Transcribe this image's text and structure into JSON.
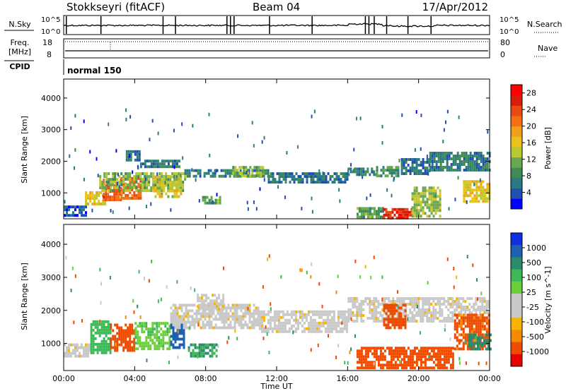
{
  "header": {
    "station": "Stokkseyri (fitACF)",
    "beam": "Beam 04",
    "date": "17/Apr/2012"
  },
  "noise_panel": {
    "left_label": "N.Sky",
    "right_label": "N.Search",
    "tick_top": "10^5",
    "tick_bottom": "10^0"
  },
  "freq_panel": {
    "left_label_1": "Freq.",
    "left_label_2": "[MHz]",
    "right_label": "Nave",
    "left_ticks": [
      "18",
      "8"
    ],
    "right_ticks": [
      "80",
      "0"
    ]
  },
  "cpid_panel": {
    "label": "CPID",
    "program": "normal 150"
  },
  "colors": {
    "power_scale": [
      "#0000ff",
      "#1f4fb0",
      "#2a7a86",
      "#3f8a55",
      "#6aa84f",
      "#b8c832",
      "#e9c21b",
      "#f0a01a",
      "#f26f13",
      "#e84a10",
      "#d81e0a",
      "#ff0000"
    ],
    "velocity_scale": [
      "#e60000",
      "#ef4b00",
      "#f58a00",
      "#f7b400",
      "#c9c9c9",
      "#c9c9c9",
      "#6ad03a",
      "#3cb856",
      "#2a8a6a",
      "#1d5fb0",
      "#1030e0"
    ]
  },
  "chart_data": [
    {
      "type": "heatmap",
      "panel": "power",
      "ylabel": "Slant Range [km]",
      "x_ticks": [
        "00:00",
        "04:00",
        "08:00",
        "12:00",
        "16:00",
        "20:00",
        "00:00"
      ],
      "y_ticks": [
        1000,
        2000,
        3000,
        4000
      ],
      "ylim": [
        180,
        4600
      ],
      "colorbar": {
        "label": "Power [dB]",
        "ticks": [
          4,
          8,
          12,
          16,
          20,
          24,
          28
        ],
        "range": [
          0,
          30
        ]
      },
      "regions": [
        {
          "t": [
            1.2,
            2.3
          ],
          "r": [
            650,
            1050
          ],
          "level": 16
        },
        {
          "t": [
            2.2,
            3.2
          ],
          "r": [
            800,
            1450
          ],
          "level": 23
        },
        {
          "t": [
            3.2,
            4.3
          ],
          "r": [
            850,
            1500
          ],
          "level": 22
        },
        {
          "t": [
            2.0,
            6.8
          ],
          "r": [
            1100,
            1650
          ],
          "level": 12
        },
        {
          "t": [
            5.0,
            6.6
          ],
          "r": [
            850,
            1550
          ],
          "level": 15
        },
        {
          "t": [
            4.3,
            6.5
          ],
          "r": [
            1800,
            2050
          ],
          "level": 7
        },
        {
          "t": [
            3.5,
            4.3
          ],
          "r": [
            2050,
            2350
          ],
          "level": 6
        },
        {
          "t": [
            6.8,
            11.5
          ],
          "r": [
            1500,
            1750
          ],
          "level": 7
        },
        {
          "t": [
            9.5,
            11.2
          ],
          "r": [
            1500,
            1850
          ],
          "level": 12
        },
        {
          "t": [
            11.5,
            16.0
          ],
          "r": [
            1350,
            1650
          ],
          "level": 6
        },
        {
          "t": [
            16.0,
            17.6
          ],
          "r": [
            1550,
            1800
          ],
          "level": 7
        },
        {
          "t": [
            17.6,
            18.8
          ],
          "r": [
            1500,
            1850
          ],
          "level": 9
        },
        {
          "t": [
            19.0,
            20.6
          ],
          "r": [
            1650,
            2100
          ],
          "level": 6
        },
        {
          "t": [
            20.6,
            24.0
          ],
          "r": [
            1700,
            2300
          ],
          "level": 7
        },
        {
          "t": [
            16.5,
            18.0
          ],
          "r": [
            250,
            550
          ],
          "level": 10
        },
        {
          "t": [
            18.0,
            19.6
          ],
          "r": [
            200,
            520
          ],
          "level": 26
        },
        {
          "t": [
            19.6,
            21.2
          ],
          "r": [
            300,
            1200
          ],
          "level": 13
        },
        {
          "t": [
            22.5,
            24.0
          ],
          "r": [
            700,
            1400
          ],
          "level": 16
        },
        {
          "t": [
            0.0,
            1.2
          ],
          "r": [
            300,
            600
          ],
          "level": 4
        },
        {
          "t": [
            7.8,
            8.8
          ],
          "r": [
            650,
            900
          ],
          "level": 10
        }
      ]
    },
    {
      "type": "heatmap",
      "panel": "velocity",
      "ylabel": "Slant Range [km]",
      "xlabel": "Time UT",
      "x_ticks": [
        "00:00",
        "04:00",
        "08:00",
        "12:00",
        "16:00",
        "20:00",
        "00:00"
      ],
      "y_ticks": [
        1000,
        2000,
        3000,
        4000
      ],
      "ylim": [
        180,
        4600
      ],
      "colorbar": {
        "label": "Velocity [m s^-1]",
        "ticks": [
          "1000",
          "500",
          "100",
          "25",
          "-25",
          "-100",
          "-500",
          "-1000"
        ]
      },
      "regions": [
        {
          "t": [
            0.0,
            1.5
          ],
          "r": [
            600,
            1000
          ],
          "level": 0
        },
        {
          "t": [
            1.5,
            2.6
          ],
          "r": [
            700,
            1700
          ],
          "level": 150
        },
        {
          "t": [
            2.6,
            4.0
          ],
          "r": [
            800,
            1600
          ],
          "level": -200
        },
        {
          "t": [
            4.0,
            6.0
          ],
          "r": [
            800,
            1650
          ],
          "level": 80
        },
        {
          "t": [
            6.0,
            6.8
          ],
          "r": [
            900,
            1600
          ],
          "level": 800
        },
        {
          "t": [
            6.0,
            11.0
          ],
          "r": [
            1500,
            2200
          ],
          "level": 0
        },
        {
          "t": [
            7.5,
            9.0
          ],
          "r": [
            2000,
            2500
          ],
          "level": 0
        },
        {
          "t": [
            11.0,
            16.0
          ],
          "r": [
            1350,
            2000
          ],
          "level": 0
        },
        {
          "t": [
            16.0,
            24.0
          ],
          "r": [
            1700,
            2400
          ],
          "level": 0
        },
        {
          "t": [
            7.0,
            8.6
          ],
          "r": [
            600,
            1000
          ],
          "level": 300
        },
        {
          "t": [
            16.5,
            22.0
          ],
          "r": [
            250,
            900
          ],
          "level": -300
        },
        {
          "t": [
            18.0,
            19.3
          ],
          "r": [
            1500,
            2200
          ],
          "level": -150
        },
        {
          "t": [
            22.0,
            24.0
          ],
          "r": [
            800,
            1900
          ],
          "level": -120
        },
        {
          "t": [
            22.8,
            24.0
          ],
          "r": [
            800,
            1300
          ],
          "level": 400
        }
      ]
    }
  ]
}
